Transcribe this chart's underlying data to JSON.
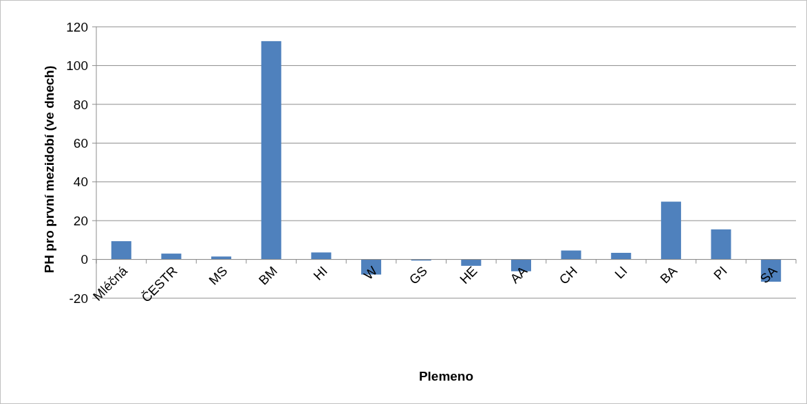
{
  "chart_data": {
    "type": "bar",
    "xlabel": "Plemeno",
    "ylabel": "PH pro první mezidobí (ve dnech)",
    "categories": [
      "Mléčná",
      "ČESTR",
      "MS",
      "BM",
      "HI",
      "W",
      "GS",
      "HE",
      "AA",
      "CH",
      "LI",
      "BA",
      "PI",
      "SA"
    ],
    "values": [
      9.4,
      3.0,
      1.5,
      112.6,
      3.6,
      -7.8,
      -0.6,
      -3.3,
      -6.1,
      4.6,
      3.4,
      29.8,
      15.5,
      -11.5
    ],
    "color": "#4f81bd",
    "ylim": [
      -20,
      120
    ],
    "yticks": [
      -20,
      0,
      20,
      40,
      60,
      80,
      100,
      120
    ],
    "grid": "y"
  }
}
